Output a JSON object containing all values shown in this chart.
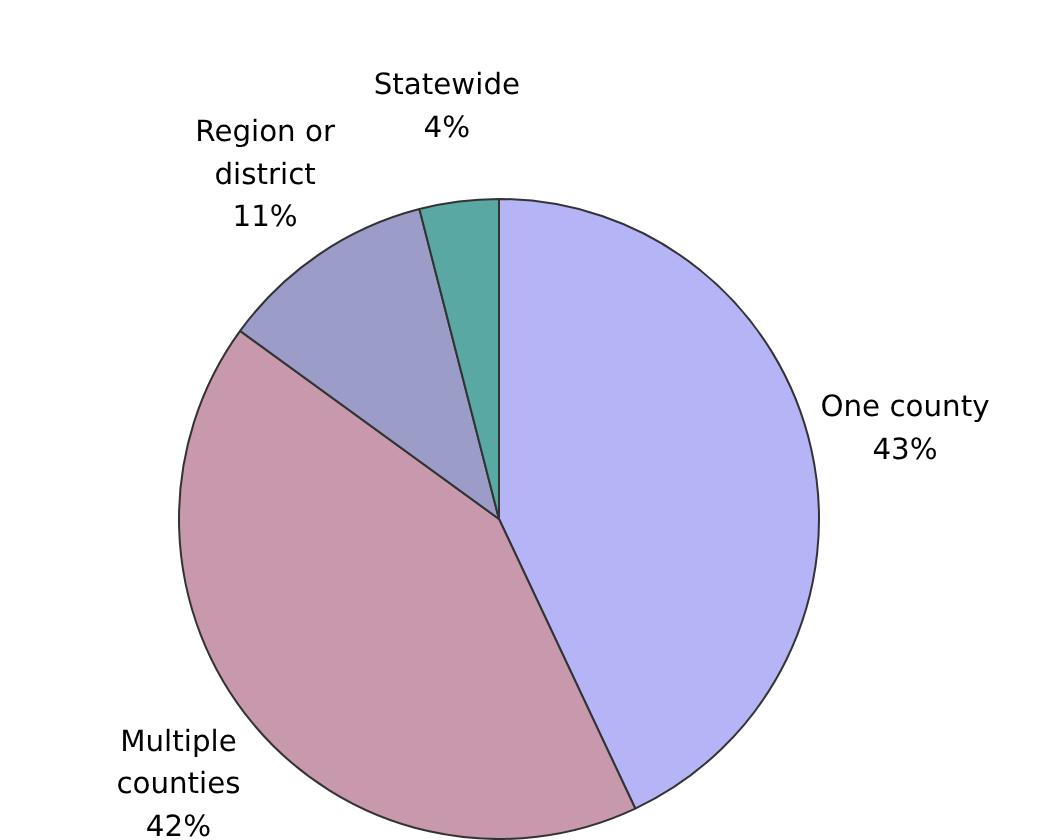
{
  "chart_data": {
    "type": "pie",
    "categories": [
      "One county",
      "Multiple counties",
      "Region or district",
      "Statewide"
    ],
    "values": [
      43,
      42,
      11,
      4
    ],
    "colors": [
      "#b4b4f6",
      "#c898ac",
      "#9c9cc8",
      "#5aa8a4"
    ],
    "value_labels": [
      "43%",
      "42%",
      "11%",
      "4%"
    ]
  }
}
